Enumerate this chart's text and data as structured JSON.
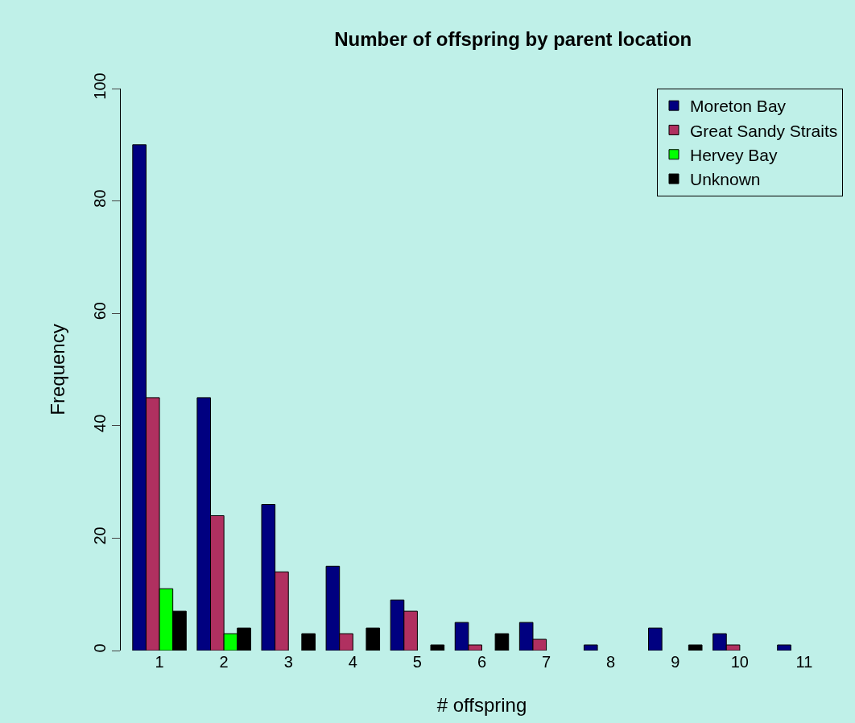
{
  "chart_data": {
    "type": "bar",
    "title": "Number of offspring by parent location",
    "xlabel": "# offspring",
    "ylabel": "Frequency",
    "categories": [
      "1",
      "2",
      "3",
      "4",
      "5",
      "6",
      "7",
      "8",
      "9",
      "10",
      "11"
    ],
    "series": [
      {
        "name": "Moreton Bay",
        "color": "#000080",
        "values": [
          90,
          45,
          26,
          15,
          9,
          5,
          5,
          1,
          4,
          3,
          1
        ]
      },
      {
        "name": "Great Sandy Straits",
        "color": "#b03060",
        "values": [
          45,
          24,
          14,
          3,
          7,
          1,
          2,
          0,
          0,
          1,
          0
        ]
      },
      {
        "name": "Hervey Bay",
        "color": "#00ff00",
        "values": [
          11,
          3,
          0,
          0,
          0,
          0,
          0,
          0,
          0,
          0,
          0
        ]
      },
      {
        "name": "Unknown",
        "color": "#000000",
        "values": [
          7,
          4,
          3,
          4,
          1,
          3,
          0,
          0,
          1,
          0,
          0
        ]
      }
    ],
    "ylim": [
      0,
      100
    ],
    "yticks": [
      0,
      20,
      40,
      60,
      80,
      100
    ],
    "grid": false,
    "legend": "top right"
  }
}
